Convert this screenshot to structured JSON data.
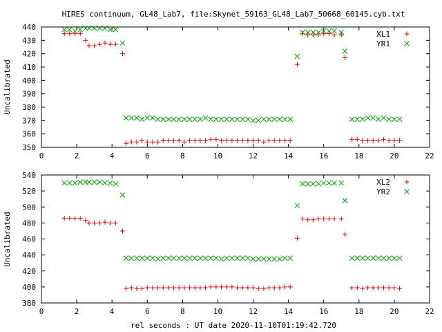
{
  "title": "HIRES continuum, GL48_Lab7, file:Skynet_59163_GL48_Lab7_50668_60145.cyb.txt",
  "xlabel": "rel seconds : UT date 2020-11-10T01:19:42.720",
  "colors": {
    "red": "#e00000",
    "green": "#00a000"
  },
  "chart_data": [
    {
      "type": "scatter",
      "ylabel": "Uncalibrated",
      "xlim": [
        0,
        22
      ],
      "ylim": [
        350,
        440
      ],
      "xticks": [
        0,
        2,
        4,
        6,
        8,
        10,
        12,
        14,
        16,
        18,
        20,
        22
      ],
      "yticks": [
        350,
        360,
        370,
        380,
        390,
        400,
        410,
        420,
        430,
        440
      ],
      "legend_position": "top-right",
      "series": [
        {
          "name": "XL1",
          "marker": "plus",
          "color": "#e00000",
          "x": [
            1.3,
            1.6,
            1.9,
            2.2,
            2.5,
            2.7,
            3.0,
            3.3,
            3.6,
            3.9,
            4.2,
            4.6,
            4.8,
            5.1,
            5.4,
            5.7,
            6.0,
            6.3,
            6.6,
            6.9,
            7.2,
            7.5,
            7.8,
            8.1,
            8.4,
            8.7,
            9.0,
            9.3,
            9.6,
            9.9,
            10.2,
            10.5,
            10.8,
            11.1,
            11.4,
            11.7,
            12.0,
            12.3,
            12.6,
            12.9,
            13.2,
            13.5,
            13.8,
            14.1,
            14.5,
            14.8,
            15.1,
            15.4,
            15.7,
            16.0,
            16.3,
            16.6,
            17.0,
            17.2,
            17.6,
            17.9,
            18.2,
            18.5,
            18.8,
            19.1,
            19.4,
            19.7,
            20.0,
            20.3
          ],
          "y": [
            435,
            435,
            435,
            435,
            430,
            426,
            426,
            427,
            428,
            427,
            427,
            420,
            353,
            354,
            354,
            355,
            354,
            354,
            354,
            355,
            355,
            355,
            355,
            354,
            355,
            355,
            355,
            355,
            356,
            356,
            355,
            355,
            355,
            355,
            355,
            355,
            355,
            355,
            354,
            355,
            355,
            355,
            355,
            355,
            412,
            435,
            434,
            434,
            434,
            435,
            435,
            434,
            434,
            417,
            356,
            356,
            355,
            355,
            355,
            355,
            356,
            355,
            355,
            355
          ]
        },
        {
          "name": "YR1",
          "marker": "cross",
          "color": "#00a000",
          "x": [
            1.3,
            1.6,
            1.9,
            2.2,
            2.5,
            2.7,
            3.0,
            3.3,
            3.6,
            3.9,
            4.2,
            4.6,
            4.8,
            5.1,
            5.4,
            5.7,
            6.0,
            6.3,
            6.6,
            6.9,
            7.2,
            7.5,
            7.8,
            8.1,
            8.4,
            8.7,
            9.0,
            9.3,
            9.6,
            9.9,
            10.2,
            10.5,
            10.8,
            11.1,
            11.4,
            11.7,
            12.0,
            12.3,
            12.6,
            12.9,
            13.2,
            13.5,
            13.8,
            14.1,
            14.5,
            14.8,
            15.1,
            15.4,
            15.7,
            16.0,
            16.3,
            16.6,
            17.0,
            17.2,
            17.6,
            17.9,
            18.2,
            18.5,
            18.8,
            19.1,
            19.4,
            19.7,
            20.0,
            20.3
          ],
          "y": [
            438,
            438,
            437,
            438,
            439,
            439,
            439,
            439,
            439,
            438,
            438,
            428,
            372,
            372,
            372,
            371,
            372,
            372,
            371,
            371,
            371,
            371,
            371,
            371,
            371,
            371,
            371,
            372,
            371,
            371,
            371,
            371,
            371,
            371,
            371,
            371,
            370,
            370,
            371,
            371,
            371,
            371,
            371,
            371,
            418,
            436,
            436,
            436,
            436,
            437,
            437,
            437,
            436,
            422,
            371,
            371,
            371,
            372,
            372,
            371,
            372,
            371,
            371,
            371
          ]
        }
      ]
    },
    {
      "type": "scatter",
      "ylabel": "Uncalibrated",
      "xlim": [
        0,
        22
      ],
      "ylim": [
        380,
        540
      ],
      "xticks": [
        0,
        2,
        4,
        6,
        8,
        10,
        12,
        14,
        16,
        18,
        20,
        22
      ],
      "yticks": [
        380,
        400,
        420,
        440,
        460,
        480,
        500,
        520,
        540
      ],
      "legend_position": "top-right",
      "series": [
        {
          "name": "XL2",
          "marker": "plus",
          "color": "#e00000",
          "x": [
            1.3,
            1.6,
            1.9,
            2.2,
            2.5,
            2.7,
            3.0,
            3.3,
            3.6,
            3.9,
            4.2,
            4.6,
            4.8,
            5.1,
            5.4,
            5.7,
            6.0,
            6.3,
            6.6,
            6.9,
            7.2,
            7.5,
            7.8,
            8.1,
            8.4,
            8.7,
            9.0,
            9.3,
            9.6,
            9.9,
            10.2,
            10.5,
            10.8,
            11.1,
            11.4,
            11.7,
            12.0,
            12.3,
            12.6,
            12.9,
            13.2,
            13.5,
            13.8,
            14.1,
            14.5,
            14.8,
            15.1,
            15.4,
            15.7,
            16.0,
            16.3,
            16.6,
            17.0,
            17.2,
            17.6,
            17.9,
            18.2,
            18.5,
            18.8,
            19.1,
            19.4,
            19.7,
            20.0,
            20.3
          ],
          "y": [
            486,
            486,
            486,
            486,
            483,
            480,
            480,
            480,
            481,
            480,
            480,
            470,
            398,
            399,
            398,
            398,
            399,
            399,
            399,
            399,
            399,
            399,
            399,
            399,
            399,
            399,
            399,
            399,
            400,
            400,
            400,
            400,
            400,
            399,
            399,
            399,
            399,
            398,
            398,
            399,
            399,
            399,
            400,
            400,
            461,
            485,
            484,
            484,
            485,
            485,
            485,
            485,
            485,
            466,
            399,
            399,
            398,
            399,
            399,
            399,
            399,
            399,
            399,
            398
          ]
        },
        {
          "name": "YR2",
          "marker": "cross",
          "color": "#00a000",
          "x": [
            1.3,
            1.6,
            1.9,
            2.2,
            2.5,
            2.7,
            3.0,
            3.3,
            3.6,
            3.9,
            4.2,
            4.6,
            4.8,
            5.1,
            5.4,
            5.7,
            6.0,
            6.3,
            6.6,
            6.9,
            7.2,
            7.5,
            7.8,
            8.1,
            8.4,
            8.7,
            9.0,
            9.3,
            9.6,
            9.9,
            10.2,
            10.5,
            10.8,
            11.1,
            11.4,
            11.7,
            12.0,
            12.3,
            12.6,
            12.9,
            13.2,
            13.5,
            13.8,
            14.1,
            14.5,
            14.8,
            15.1,
            15.4,
            15.7,
            16.0,
            16.3,
            16.6,
            17.0,
            17.2,
            17.6,
            17.9,
            18.2,
            18.5,
            18.8,
            19.1,
            19.4,
            19.7,
            20.0,
            20.3
          ],
          "y": [
            530,
            530,
            530,
            531,
            531,
            531,
            531,
            531,
            530,
            530,
            529,
            515,
            436,
            436,
            436,
            436,
            436,
            436,
            435,
            436,
            436,
            436,
            436,
            436,
            436,
            436,
            436,
            436,
            436,
            436,
            435,
            436,
            436,
            436,
            436,
            436,
            435,
            435,
            435,
            435,
            435,
            435,
            436,
            436,
            502,
            529,
            529,
            529,
            529,
            530,
            530,
            530,
            530,
            508,
            436,
            436,
            436,
            436,
            436,
            436,
            436,
            436,
            436,
            436
          ]
        }
      ]
    }
  ]
}
